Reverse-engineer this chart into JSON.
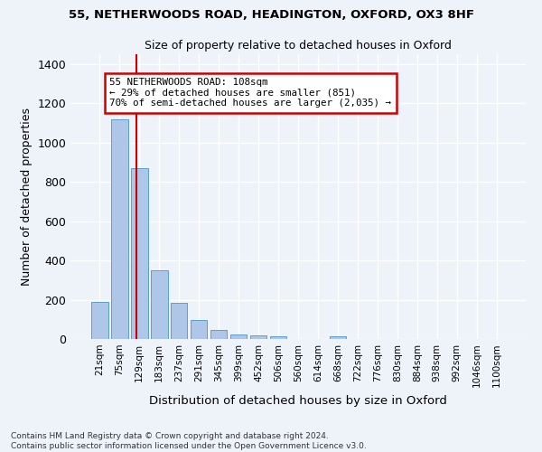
{
  "title1": "55, NETHERWOODS ROAD, HEADINGTON, OXFORD, OX3 8HF",
  "title2": "Size of property relative to detached houses in Oxford",
  "xlabel": "Distribution of detached houses by size in Oxford",
  "ylabel": "Number of detached properties",
  "footnote1": "Contains HM Land Registry data © Crown copyright and database right 2024.",
  "footnote2": "Contains public sector information licensed under the Open Government Licence v3.0.",
  "bar_labels": [
    "21sqm",
    "75sqm",
    "129sqm",
    "183sqm",
    "237sqm",
    "291sqm",
    "345sqm",
    "399sqm",
    "452sqm",
    "506sqm",
    "560sqm",
    "614sqm",
    "668sqm",
    "722sqm",
    "776sqm",
    "830sqm",
    "884sqm",
    "938sqm",
    "992sqm",
    "1046sqm",
    "1100sqm"
  ],
  "bar_values": [
    190,
    1120,
    870,
    350,
    185,
    95,
    48,
    22,
    18,
    15,
    0,
    0,
    12,
    0,
    0,
    0,
    0,
    0,
    0,
    0,
    0
  ],
  "bar_color": "#aec6e8",
  "bar_edge_color": "#5a9fd4",
  "vline_x": 1.85,
  "vline_color": "#cc0000",
  "annotation_text": "55 NETHERWOODS ROAD: 108sqm\n← 29% of detached houses are smaller (851)\n70% of semi-detached houses are larger (2,035) →",
  "ylim": [
    0,
    1450
  ],
  "yticks": [
    0,
    200,
    400,
    600,
    800,
    1000,
    1200,
    1400
  ],
  "bg_color": "#eef2f9",
  "grid_color": "#ffffff",
  "annotation_box_color": "#ffffff",
  "annotation_border_color": "#cc0000"
}
